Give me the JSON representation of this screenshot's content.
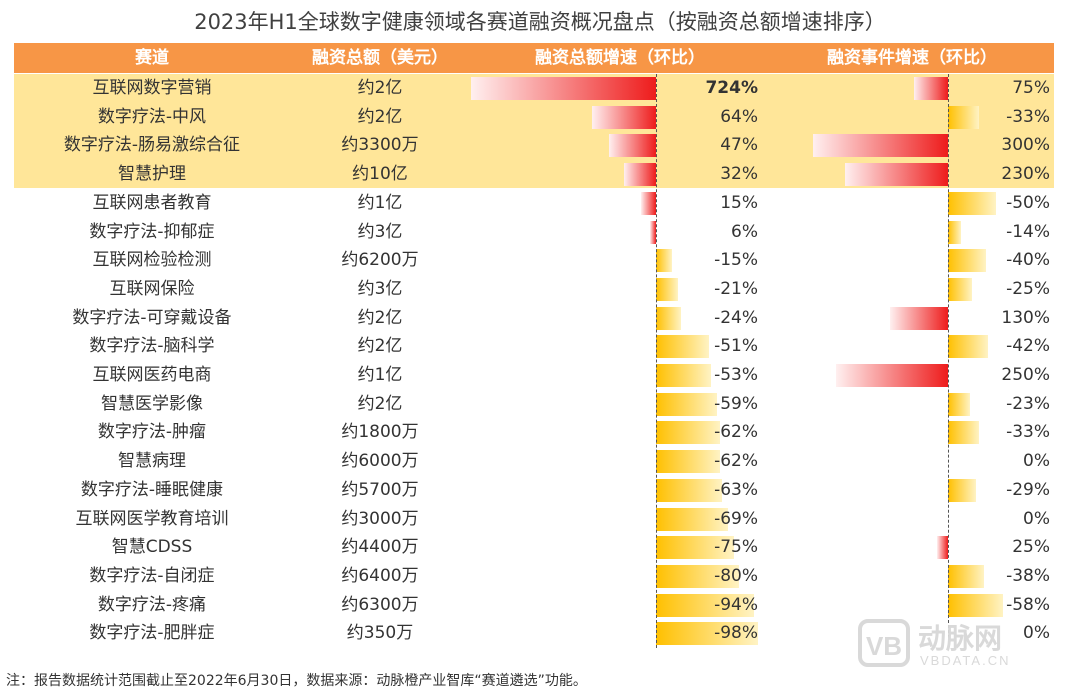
{
  "title": "2023年H1全球数字健康领域各赛道融资概况盘点（按融资总额增速排序）",
  "headers": {
    "track": "赛道",
    "amount": "融资总额（美元）",
    "amount_growth": "融资总额增速（环比）",
    "event_growth": "融资事件增速（环比）"
  },
  "footnote": "注：报告数据统计范围截止至2022年6月30日，数据来源：动脉橙产业智库“赛道遴选”功能。",
  "watermark": {
    "text": "动脉网",
    "sub": "VBDATA.CN"
  },
  "colors": {
    "header": "#f79646",
    "highlight": "#ffe699",
    "positive": "#ee1c1c",
    "negative": "#ffc000"
  },
  "chart_data": {
    "type": "bar",
    "title": "2023年H1全球数字健康领域各赛道融资概况盘点（按融资总额增速排序）",
    "categories": [
      "互联网数字营销",
      "数字疗法-中风",
      "数字疗法-肠易激综合征",
      "智慧护理",
      "互联网患者教育",
      "数字疗法-抑郁症",
      "互联网检验检测",
      "互联网保险",
      "数字疗法-可穿戴设备",
      "数字疗法-脑科学",
      "互联网医药电商",
      "智慧医学影像",
      "数字疗法-肿瘤",
      "智慧病理",
      "数字疗法-睡眠健康",
      "互联网医学教育培训",
      "智慧CDSS",
      "数字疗法-自闭症",
      "数字疗法-疼痛",
      "数字疗法-肥胖症"
    ],
    "amounts": [
      "约2亿",
      "约2亿",
      "约3300万",
      "约10亿",
      "约1亿",
      "约3亿",
      "约6200万",
      "约3亿",
      "约2亿",
      "约2亿",
      "约1亿",
      "约2亿",
      "约1800万",
      "约6000万",
      "约5700万",
      "约3000万",
      "约4400万",
      "约6400万",
      "约6300万",
      "约350万"
    ],
    "series": [
      {
        "name": "融资总额增速（环比）",
        "values": [
          724,
          64,
          47,
          32,
          15,
          6,
          -15,
          -21,
          -24,
          -51,
          -53,
          -59,
          -62,
          -62,
          -63,
          -69,
          -75,
          -80,
          -94,
          -98
        ],
        "labels": [
          "724%",
          "64%",
          "47%",
          "32%",
          "15%",
          "6%",
          "-15%",
          "-21%",
          "-24%",
          "-51%",
          "-53%",
          "-59%",
          "-62%",
          "-62%",
          "-63%",
          "-69%",
          "-75%",
          "-80%",
          "-94%",
          "-98%"
        ]
      },
      {
        "name": "融资事件增速（环比）",
        "values": [
          75,
          -33,
          300,
          230,
          -50,
          -14,
          -40,
          -25,
          130,
          -42,
          250,
          -23,
          -33,
          0,
          -29,
          0,
          25,
          -38,
          -58,
          0
        ],
        "labels": [
          "75%",
          "-33%",
          "300%",
          "230%",
          "-50%",
          "-14%",
          "-40%",
          "-25%",
          "130%",
          "-42%",
          "250%",
          "-23%",
          "-33%",
          "0%",
          "-29%",
          "0%",
          "25%",
          "-38%",
          "-58%",
          "0%"
        ]
      }
    ],
    "highlighted_rows": [
      0,
      1,
      2,
      3
    ]
  }
}
